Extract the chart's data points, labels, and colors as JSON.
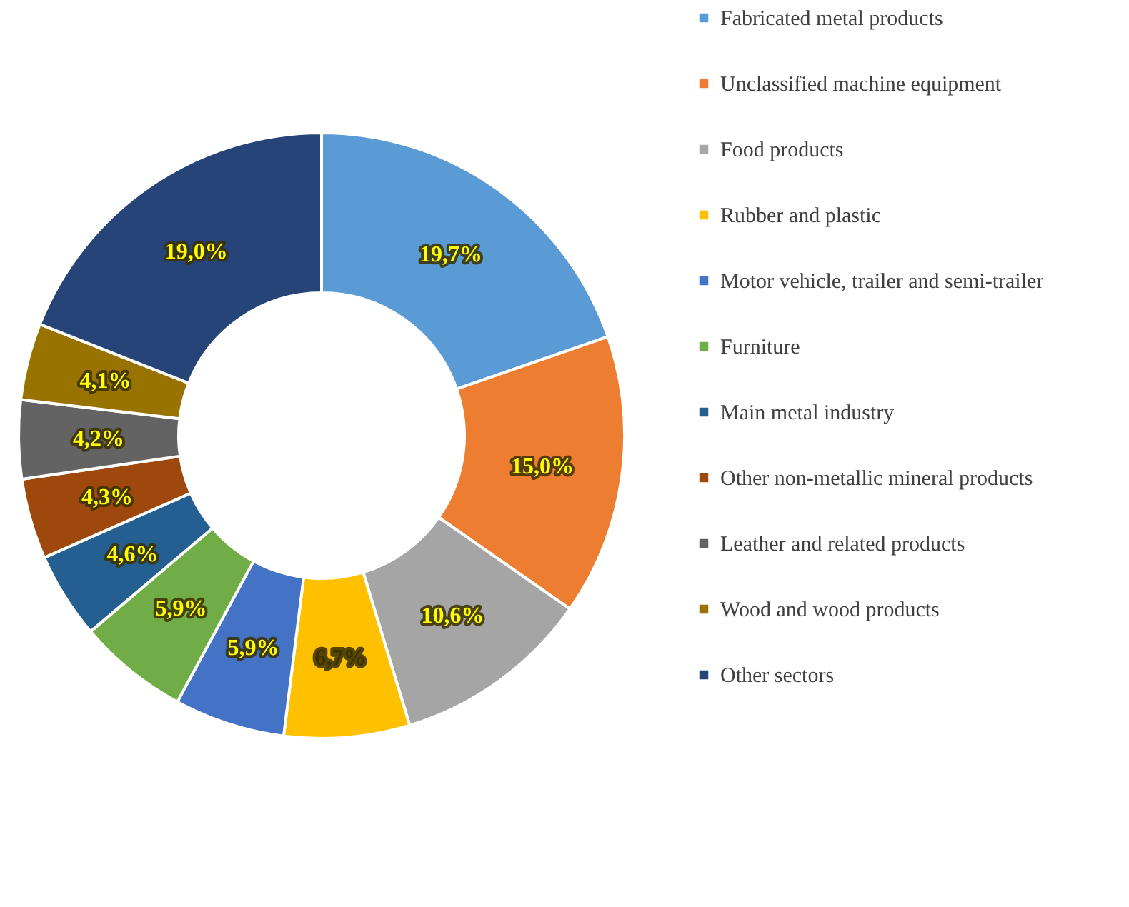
{
  "chart_data": {
    "type": "donut",
    "categories": [
      "Fabricated metal products",
      "Unclassified machine equipment",
      "Food products",
      "Rubber and plastic",
      "Motor vehicle, trailer and semi-trailer",
      "Furniture",
      "Main metal industry",
      "Other non-metallic mineral products",
      "Leather and related products",
      "Wood and wood products",
      "Other sectors"
    ],
    "values": [
      19.7,
      15.0,
      10.6,
      6.7,
      5.9,
      5.9,
      4.6,
      4.3,
      4.2,
      4.1,
      19.0
    ],
    "value_labels": [
      "19,7%",
      "15,0%",
      "10,6%",
      "6,7%",
      "5,9%",
      "5,9%",
      "4,6%",
      "4,3%",
      "4,2%",
      "4,1%",
      "19,0%"
    ],
    "colors": [
      "#5b9bd5",
      "#ed7d31",
      "#a5a5a5",
      "#ffc000",
      "#4472c4",
      "#70ad47",
      "#255e91",
      "#9e480e",
      "#636363",
      "#997300",
      "#264478"
    ],
    "legend": "right"
  }
}
